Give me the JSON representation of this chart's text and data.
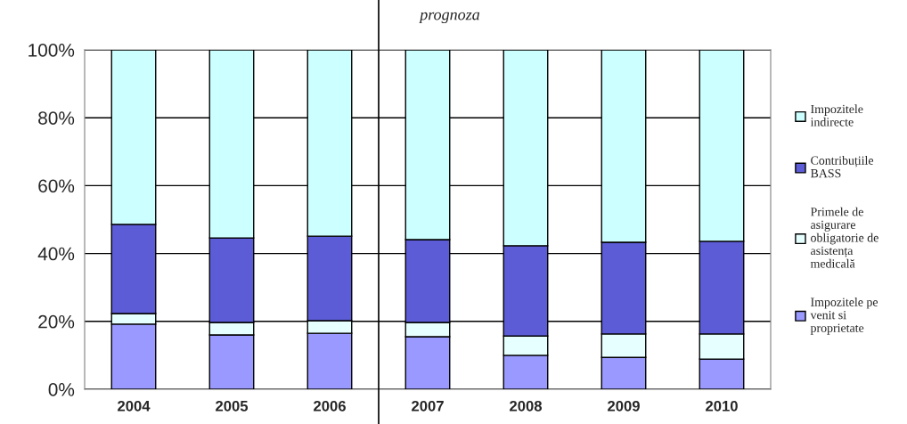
{
  "chart_data": {
    "type": "bar",
    "stacked": true,
    "categories": [
      "2004",
      "2005",
      "2006",
      "2007",
      "2008",
      "2009",
      "2010"
    ],
    "series": [
      {
        "name": "Impozitele pe venit si proprietate",
        "color": "#9999ff",
        "values": [
          19.2,
          16.0,
          16.5,
          15.5,
          10.0,
          9.4,
          8.9
        ]
      },
      {
        "name": "Primele de asigurare obligatorie de asistența medicală",
        "color": "#e6ffff",
        "values": [
          3.1,
          3.7,
          3.7,
          4.2,
          5.7,
          6.9,
          7.4
        ]
      },
      {
        "name": "Contribuțiile BASS",
        "color": "#5c5cd6",
        "values": [
          26.3,
          24.9,
          24.9,
          24.4,
          26.6,
          27.0,
          27.3
        ]
      },
      {
        "name": "Impozitele indirecte",
        "color": "#ccffff",
        "values": [
          51.4,
          55.4,
          54.9,
          55.9,
          57.7,
          56.7,
          56.4
        ]
      }
    ],
    "ylim": [
      0,
      100
    ],
    "yticks": [
      {
        "value": 0,
        "label": "0%"
      },
      {
        "value": 20,
        "label": "20%"
      },
      {
        "value": 40,
        "label": "40%"
      },
      {
        "value": 60,
        "label": "60%"
      },
      {
        "value": 80,
        "label": "80%"
      },
      {
        "value": 100,
        "label": "100%"
      }
    ],
    "grid": "y",
    "legend": "right",
    "annotations": [
      "prognoza"
    ]
  }
}
